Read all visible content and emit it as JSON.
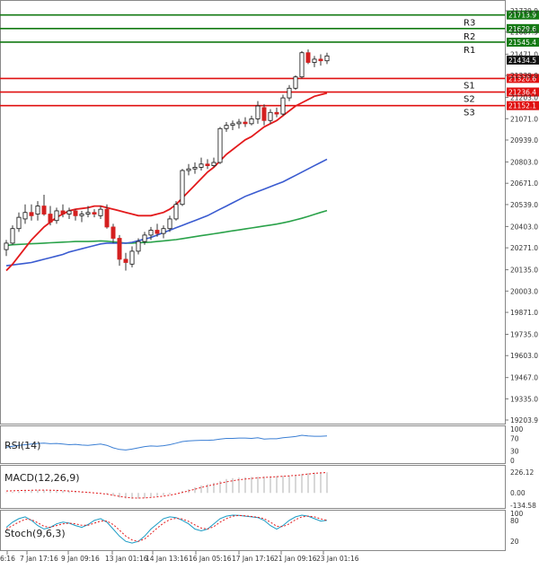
{
  "chart_data": {
    "type": "candlestick",
    "colors": {
      "up": "#1f9d3c",
      "down": "#d42020",
      "ma_red": "#e31a1c",
      "ma_blue": "#3a5bd0",
      "ma_green": "#2aa24a",
      "resistance": "#137a13",
      "support": "#e01010",
      "rsi": "#3b7fd4",
      "macd_hist": "#b0b0b0",
      "macd_signal": "#e31a1c",
      "stoch_k": "#1a9bc4",
      "stoch_d": "#e31a1c",
      "grid": "#d8d8d8",
      "axis_text": "#333333"
    },
    "main": {
      "y_range": [
        19203.9,
        21780
      ],
      "y_ticks": [
        "21739.9",
        "21607.9",
        "21471.0",
        "21339.0",
        "21203.0",
        "21071.0",
        "20939.0",
        "20803.0",
        "20671.0",
        "20539.0",
        "20403.0",
        "20271.0",
        "20135.0",
        "20003.0",
        "19871.0",
        "19735.0",
        "19603.0",
        "19467.0",
        "19335.0",
        "19203.9"
      ],
      "levels": [
        {
          "label": "R3",
          "value": 21713.9,
          "kind": "resistance"
        },
        {
          "label": "R2",
          "value": 21629.6,
          "kind": "resistance"
        },
        {
          "label": "R1",
          "value": 21545.4,
          "kind": "resistance"
        },
        {
          "label": "S1",
          "value": 21320.6,
          "kind": "support"
        },
        {
          "label": "S2",
          "value": 21236.4,
          "kind": "support"
        },
        {
          "label": "S3",
          "value": 21152.1,
          "kind": "support"
        }
      ],
      "level_value_labels": [
        "21713.9",
        "21629.6",
        "21545.4",
        "21320.6",
        "21236.4",
        "21152.1"
      ],
      "current_price": 21434.5,
      "current_price_label": "21434.5",
      "candles": [
        {
          "o": 20260,
          "h": 20320,
          "l": 20220,
          "c": 20300
        },
        {
          "o": 20300,
          "h": 20410,
          "l": 20290,
          "c": 20390
        },
        {
          "o": 20390,
          "h": 20490,
          "l": 20370,
          "c": 20460
        },
        {
          "o": 20450,
          "h": 20540,
          "l": 20420,
          "c": 20490
        },
        {
          "o": 20490,
          "h": 20540,
          "l": 20440,
          "c": 20470
        },
        {
          "o": 20480,
          "h": 20560,
          "l": 20440,
          "c": 20530
        },
        {
          "o": 20530,
          "h": 20600,
          "l": 20470,
          "c": 20480
        },
        {
          "o": 20480,
          "h": 20530,
          "l": 20410,
          "c": 20430
        },
        {
          "o": 20440,
          "h": 20520,
          "l": 20420,
          "c": 20500
        },
        {
          "o": 20500,
          "h": 20540,
          "l": 20460,
          "c": 20480
        },
        {
          "o": 20480,
          "h": 20520,
          "l": 20450,
          "c": 20500
        },
        {
          "o": 20500,
          "h": 20510,
          "l": 20440,
          "c": 20470
        },
        {
          "o": 20470,
          "h": 20500,
          "l": 20430,
          "c": 20480
        },
        {
          "o": 20480,
          "h": 20530,
          "l": 20460,
          "c": 20490
        },
        {
          "o": 20490,
          "h": 20510,
          "l": 20460,
          "c": 20480
        },
        {
          "o": 20470,
          "h": 20530,
          "l": 20450,
          "c": 20510
        },
        {
          "o": 20510,
          "h": 20540,
          "l": 20390,
          "c": 20400
        },
        {
          "o": 20400,
          "h": 20420,
          "l": 20300,
          "c": 20330
        },
        {
          "o": 20330,
          "h": 20350,
          "l": 20160,
          "c": 20200
        },
        {
          "o": 20200,
          "h": 20240,
          "l": 20130,
          "c": 20180
        },
        {
          "o": 20170,
          "h": 20280,
          "l": 20150,
          "c": 20250
        },
        {
          "o": 20250,
          "h": 20330,
          "l": 20230,
          "c": 20310
        },
        {
          "o": 20310,
          "h": 20370,
          "l": 20290,
          "c": 20350
        },
        {
          "o": 20350,
          "h": 20400,
          "l": 20320,
          "c": 20380
        },
        {
          "o": 20380,
          "h": 20420,
          "l": 20340,
          "c": 20360
        },
        {
          "o": 20360,
          "h": 20410,
          "l": 20330,
          "c": 20390
        },
        {
          "o": 20390,
          "h": 20470,
          "l": 20370,
          "c": 20450
        },
        {
          "o": 20450,
          "h": 20560,
          "l": 20440,
          "c": 20540
        },
        {
          "o": 20540,
          "h": 20760,
          "l": 20530,
          "c": 20750
        },
        {
          "o": 20750,
          "h": 20790,
          "l": 20720,
          "c": 20760
        },
        {
          "o": 20760,
          "h": 20800,
          "l": 20730,
          "c": 20770
        },
        {
          "o": 20770,
          "h": 20830,
          "l": 20750,
          "c": 20790
        },
        {
          "o": 20790,
          "h": 20820,
          "l": 20760,
          "c": 20780
        },
        {
          "o": 20780,
          "h": 20830,
          "l": 20770,
          "c": 20800
        },
        {
          "o": 20800,
          "h": 21020,
          "l": 20790,
          "c": 21010
        },
        {
          "o": 21010,
          "h": 21050,
          "l": 20990,
          "c": 21030
        },
        {
          "o": 21030,
          "h": 21060,
          "l": 21000,
          "c": 21040
        },
        {
          "o": 21040,
          "h": 21070,
          "l": 21010,
          "c": 21050
        },
        {
          "o": 21050,
          "h": 21080,
          "l": 21020,
          "c": 21040
        },
        {
          "o": 21040,
          "h": 21090,
          "l": 21030,
          "c": 21070
        },
        {
          "o": 21070,
          "h": 21180,
          "l": 21040,
          "c": 21150
        },
        {
          "o": 21140,
          "h": 21160,
          "l": 21030,
          "c": 21060
        },
        {
          "o": 21060,
          "h": 21130,
          "l": 21040,
          "c": 21110
        },
        {
          "o": 21110,
          "h": 21140,
          "l": 21080,
          "c": 21100
        },
        {
          "o": 21100,
          "h": 21220,
          "l": 21090,
          "c": 21200
        },
        {
          "o": 21200,
          "h": 21280,
          "l": 21180,
          "c": 21260
        },
        {
          "o": 21260,
          "h": 21340,
          "l": 21250,
          "c": 21330
        },
        {
          "o": 21330,
          "h": 21490,
          "l": 21320,
          "c": 21480
        },
        {
          "o": 21480,
          "h": 21500,
          "l": 21410,
          "c": 21420
        },
        {
          "o": 21420,
          "h": 21460,
          "l": 21390,
          "c": 21440
        },
        {
          "o": 21440,
          "h": 21470,
          "l": 21400,
          "c": 21430
        },
        {
          "o": 21430,
          "h": 21480,
          "l": 21410,
          "c": 21460
        }
      ],
      "ma_red": [
        20130,
        20170,
        20220,
        20270,
        20320,
        20360,
        20400,
        20430,
        20460,
        20480,
        20500,
        20510,
        20515,
        20520,
        20530,
        20530,
        20520,
        20510,
        20500,
        20490,
        20480,
        20470,
        20470,
        20470,
        20480,
        20490,
        20510,
        20540,
        20580,
        20620,
        20660,
        20700,
        20740,
        20770,
        20810,
        20850,
        20880,
        20910,
        20940,
        20960,
        20990,
        21020,
        21040,
        21060,
        21090,
        21120,
        21150,
        21170,
        21190,
        21210,
        21220,
        21230
      ],
      "ma_blue": [
        20160,
        20165,
        20170,
        20175,
        20180,
        20190,
        20200,
        20210,
        20220,
        20230,
        20245,
        20255,
        20265,
        20275,
        20285,
        20295,
        20300,
        20300,
        20300,
        20300,
        20305,
        20315,
        20325,
        20335,
        20350,
        20365,
        20380,
        20395,
        20410,
        20425,
        20440,
        20455,
        20470,
        20490,
        20510,
        20530,
        20550,
        20570,
        20590,
        20605,
        20620,
        20635,
        20650,
        20665,
        20680,
        20700,
        20720,
        20740,
        20760,
        20780,
        20800,
        20820
      ],
      "ma_green": [
        20285,
        20290,
        20292,
        20294,
        20296,
        20298,
        20300,
        20302,
        20304,
        20306,
        20308,
        20310,
        20310,
        20310,
        20312,
        20314,
        20312,
        20308,
        20304,
        20300,
        20300,
        20302,
        20304,
        20306,
        20310,
        20314,
        20318,
        20322,
        20328,
        20334,
        20340,
        20346,
        20352,
        20358,
        20364,
        20370,
        20376,
        20382,
        20388,
        20394,
        20400,
        20406,
        20412,
        20418,
        20426,
        20434,
        20444,
        20454,
        20466,
        20478,
        20490,
        20502
      ],
      "x_labels": [
        "6:16",
        "7 Jan 17:16",
        "9 Jan 09:16",
        "13 Jan 01:16",
        "14 Jan 13:16",
        "16 Jan 05:16",
        "17 Jan 17:16",
        "21 Jan 09:16",
        "23 Jan 01:16"
      ]
    },
    "rsi": {
      "label": "RSI(14)",
      "y_range": [
        0,
        100
      ],
      "y_ticks": [
        "100",
        "70",
        "30",
        "0"
      ],
      "values": [
        42,
        45,
        48,
        50,
        52,
        54,
        55,
        53,
        54,
        52,
        50,
        51,
        49,
        48,
        50,
        52,
        48,
        40,
        35,
        33,
        36,
        40,
        44,
        46,
        45,
        47,
        50,
        55,
        60,
        62,
        63,
        64,
        64,
        65,
        68,
        70,
        70,
        71,
        71,
        70,
        72,
        68,
        69,
        69,
        72,
        74,
        76,
        80,
        78,
        77,
        77,
        78
      ]
    },
    "macd": {
      "label": "MACD(12,26,9)",
      "y_ticks": [
        "226.12",
        "0.00",
        "-134.58"
      ],
      "hist": [
        5,
        10,
        15,
        20,
        25,
        30,
        32,
        30,
        28,
        25,
        20,
        15,
        10,
        5,
        0,
        -5,
        -15,
        -30,
        -50,
        -60,
        -65,
        -60,
        -55,
        -45,
        -35,
        -25,
        -15,
        0,
        20,
        40,
        60,
        80,
        95,
        110,
        130,
        150,
        160,
        165,
        170,
        172,
        175,
        178,
        180,
        182,
        185,
        190,
        195,
        205,
        215,
        220,
        222,
        224
      ],
      "signal": [
        20,
        22,
        25,
        27,
        28,
        30,
        30,
        29,
        27,
        24,
        20,
        16,
        11,
        6,
        0,
        -6,
        -14,
        -25,
        -38,
        -48,
        -55,
        -57,
        -55,
        -50,
        -43,
        -35,
        -25,
        -12,
        5,
        22,
        40,
        58,
        75,
        90,
        105,
        120,
        132,
        142,
        150,
        157,
        163,
        168,
        172,
        176,
        180,
        185,
        190,
        197,
        205,
        212,
        217,
        221
      ]
    },
    "stoch": {
      "label": "Stoch(9,6,3)",
      "y_ticks": [
        "100",
        "80",
        "20"
      ],
      "k": [
        60,
        75,
        85,
        90,
        80,
        65,
        55,
        60,
        70,
        75,
        72,
        65,
        60,
        68,
        80,
        85,
        75,
        55,
        35,
        20,
        15,
        20,
        35,
        55,
        70,
        85,
        90,
        88,
        80,
        70,
        55,
        50,
        55,
        70,
        85,
        92,
        95,
        94,
        92,
        90,
        88,
        80,
        65,
        55,
        65,
        80,
        90,
        95,
        92,
        85,
        78,
        80
      ],
      "d": [
        55,
        65,
        75,
        83,
        82,
        73,
        63,
        60,
        65,
        70,
        72,
        70,
        66,
        66,
        72,
        78,
        78,
        68,
        52,
        35,
        24,
        20,
        27,
        42,
        58,
        72,
        82,
        86,
        84,
        77,
        67,
        58,
        55,
        62,
        75,
        85,
        92,
        94,
        93,
        91,
        89,
        85,
        75,
        63,
        62,
        70,
        82,
        90,
        92,
        90,
        84,
        80
      ]
    }
  }
}
